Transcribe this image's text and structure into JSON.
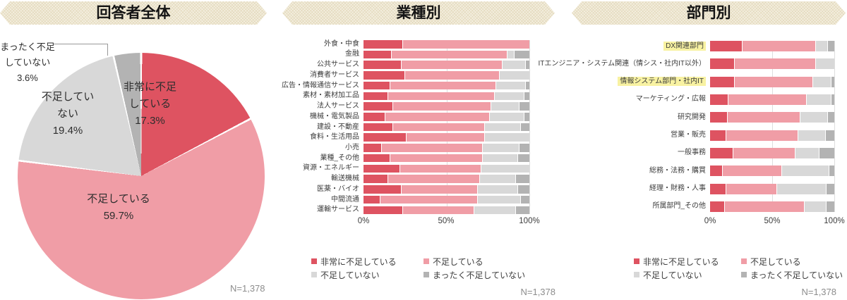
{
  "colors": {
    "series": [
      "#de5361",
      "#f09da6",
      "#d8d8d8",
      "#b3b3b3"
    ],
    "highlight": "#f8f2a2",
    "banner_bg": "#f4efe0",
    "banner_pattern": "#e8e1ca",
    "leader_line": "#999999",
    "n_text": "#8d8d8d"
  },
  "legend": {
    "items": [
      "非常に不足している",
      "不足している",
      "不足していない",
      "まったく不足していない"
    ]
  },
  "chart_data": [
    {
      "type": "pie",
      "title": "回答者全体",
      "labels": [
        "非常に不足している",
        "不足している",
        "不足していない",
        "まったく不足していない"
      ],
      "values": [
        17.3,
        59.7,
        19.4,
        3.6
      ],
      "label_lines": [
        [
          "非常に不足",
          "している",
          "17.3%"
        ],
        [
          "不足している",
          "59.7%"
        ],
        [
          "不足してい",
          "ない",
          "19.4%"
        ],
        [
          "まったく不足",
          "していない",
          "3.6%"
        ]
      ],
      "start_angle_deg": 0,
      "direction": "clockwise",
      "n_label": "N=1,378"
    },
    {
      "type": "bar",
      "title": "業種別",
      "stacked": true,
      "orientation": "horizontal",
      "xlim": [
        0,
        100
      ],
      "tick_labels": [
        "0%",
        "50%",
        "100%"
      ],
      "grid": "50-and-100-percent",
      "legend_position": "bottom",
      "n_label": "N=1,378",
      "categories": [
        "外食・中食",
        "金融",
        "公共サービス",
        "消費者サービス",
        "広告・情報通信サービス",
        "素材・素材加工品",
        "法人サービス",
        "機械・電気製品",
        "建設・不動産",
        "食料・生活用品",
        "小売",
        "業種_その他",
        "資源・エネルギー",
        "輸送機械",
        "医薬・バイオ",
        "中間流通",
        "運輸サービス"
      ],
      "series": [
        {
          "name": "非常に不足している",
          "values": [
            24,
            17,
            23,
            25,
            16,
            15,
            18,
            13,
            18,
            26,
            11,
            16,
            22,
            15,
            23,
            10,
            24
          ]
        },
        {
          "name": "不足している",
          "values": [
            76,
            70,
            61,
            57,
            64,
            64,
            59,
            63,
            55,
            47,
            61,
            56,
            49,
            55,
            46,
            59,
            43
          ]
        },
        {
          "name": "不足していない",
          "values": [
            0,
            4,
            14,
            18,
            18,
            18,
            17,
            21,
            22,
            27,
            22,
            21,
            29,
            22,
            24,
            26,
            25
          ]
        },
        {
          "name": "まったく不足していない",
          "values": [
            0,
            9,
            2,
            0,
            2,
            3,
            6,
            3,
            5,
            0,
            6,
            7,
            0,
            8,
            7,
            5,
            8
          ]
        }
      ]
    },
    {
      "type": "bar",
      "title": "部門別",
      "stacked": true,
      "orientation": "horizontal",
      "xlim": [
        0,
        100
      ],
      "tick_labels": [
        "0%",
        "50%",
        "100%"
      ],
      "grid": "50-and-100-percent",
      "legend_position": "bottom",
      "n_label": "N=1,378",
      "highlighted": [
        0,
        2
      ],
      "categories": [
        "DX関連部門",
        "ITエンジニア・システム関連（情シス・社内IT以外）",
        "情報システム部門・社内IT",
        "マーケティング・広報",
        "研究開発",
        "営業・販売",
        "一般事務",
        "総務・法務・購買",
        "経理・財務・人事",
        "所属部門_その他"
      ],
      "series": [
        {
          "name": "非常に不足している",
          "values": [
            26,
            20,
            20,
            15,
            14,
            13,
            19,
            10,
            13,
            12
          ]
        },
        {
          "name": "不足している",
          "values": [
            59,
            65,
            63,
            63,
            59,
            58,
            50,
            48,
            41,
            64
          ]
        },
        {
          "name": "不足していない",
          "values": [
            10,
            15,
            15,
            20,
            22,
            22,
            19,
            38,
            40,
            18
          ]
        },
        {
          "name": "まったく不足していない",
          "values": [
            5,
            0,
            2,
            2,
            5,
            7,
            12,
            4,
            6,
            6
          ]
        }
      ]
    }
  ]
}
